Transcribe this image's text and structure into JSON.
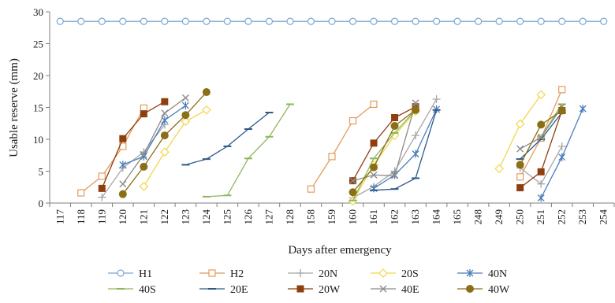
{
  "chart_data": {
    "type": "line",
    "xlabel": "Days after emergency",
    "ylabel": "Usable reserve (mm)",
    "categories": [
      "117",
      "118",
      "119",
      "120",
      "121",
      "122",
      "123",
      "124",
      "125",
      "126",
      "127",
      "128",
      "158",
      "159",
      "160",
      "161",
      "162",
      "163",
      "164",
      "165",
      "248",
      "249",
      "250",
      "251",
      "252",
      "253",
      "254"
    ],
    "ylim": [
      0,
      30
    ],
    "yticks": [
      0,
      5,
      10,
      15,
      20,
      25,
      30
    ],
    "grid": false,
    "legend_position": "bottom",
    "series": [
      {
        "name": "H1",
        "color": "#7BA7CE",
        "marker": "circle-open",
        "points": [
          [
            "117",
            28.5
          ],
          [
            "118",
            28.5
          ],
          [
            "119",
            28.5
          ],
          [
            "120",
            28.5
          ],
          [
            "121",
            28.5
          ],
          [
            "122",
            28.5
          ],
          [
            "123",
            28.5
          ],
          [
            "124",
            28.5
          ],
          [
            "125",
            28.5
          ],
          [
            "126",
            28.5
          ],
          [
            "127",
            28.5
          ],
          [
            "128",
            28.5
          ],
          [
            "158",
            28.5
          ],
          [
            "159",
            28.5
          ],
          [
            "160",
            28.5
          ],
          [
            "161",
            28.5
          ],
          [
            "162",
            28.5
          ],
          [
            "163",
            28.5
          ],
          [
            "164",
            28.5
          ],
          [
            "165",
            28.5
          ],
          [
            "248",
            28.5
          ],
          [
            "249",
            28.5
          ],
          [
            "250",
            28.5
          ],
          [
            "251",
            28.5
          ],
          [
            "252",
            28.5
          ],
          [
            "253",
            28.5
          ],
          [
            "254",
            28.5
          ]
        ]
      },
      {
        "name": "H2",
        "color": "#E59B5A",
        "marker": "square-open",
        "segments": [
          [
            [
              "118",
              1.6
            ],
            [
              "119",
              4.2
            ],
            [
              "120",
              8.9
            ],
            [
              "121",
              14.9
            ]
          ],
          [
            [
              "158",
              2.2
            ],
            [
              "159",
              7.3
            ],
            [
              "160",
              12.9
            ],
            [
              "161",
              15.5
            ]
          ],
          [
            [
              "250",
              4.1
            ],
            [
              "251",
              10.2
            ],
            [
              "252",
              17.8
            ]
          ]
        ]
      },
      {
        "name": "20N",
        "color": "#A6A6A6",
        "marker": "plus",
        "segments": [
          [
            [
              "119",
              0.9
            ],
            [
              "120",
              5.5
            ],
            [
              "121",
              8.0
            ],
            [
              "122",
              12.3
            ]
          ],
          [
            [
              "160",
              0.8
            ],
            [
              "161",
              2.6
            ],
            [
              "162",
              5.0
            ],
            [
              "163",
              10.6
            ],
            [
              "164",
              16.3
            ]
          ],
          [
            [
              "250",
              5.5
            ],
            [
              "251",
              3.0
            ],
            [
              "252",
              8.9
            ]
          ]
        ]
      },
      {
        "name": "20S",
        "color": "#F2D64B",
        "marker": "diamond-open",
        "segments": [
          [
            [
              "121",
              2.6
            ],
            [
              "122",
              8.0
            ],
            [
              "123",
              12.8
            ],
            [
              "124",
              14.6
            ]
          ],
          [
            [
              "160",
              0.3
            ],
            [
              "161",
              6.0
            ],
            [
              "162",
              10.6
            ],
            [
              "163",
              14.4
            ]
          ],
          [
            [
              "249",
              5.4
            ],
            [
              "250",
              12.4
            ],
            [
              "251",
              17.0
            ]
          ]
        ]
      },
      {
        "name": "40N",
        "color": "#4A7EBB",
        "marker": "asterisk",
        "segments": [
          [
            [
              "120",
              6.0
            ],
            [
              "121",
              7.3
            ],
            [
              "122",
              13.0
            ],
            [
              "123",
              15.3
            ]
          ],
          [
            [
              "161",
              2.3
            ],
            [
              "162",
              4.4
            ],
            [
              "163",
              7.7
            ],
            [
              "164",
              14.7
            ]
          ],
          [
            [
              "251",
              0.8
            ],
            [
              "252",
              7.2
            ],
            [
              "253",
              14.8
            ]
          ]
        ]
      },
      {
        "name": "40S",
        "color": "#8DB85A",
        "marker": "dash",
        "segments": [
          [
            [
              "124",
              1.0
            ],
            [
              "125",
              1.2
            ],
            [
              "126",
              7.0
            ],
            [
              "127",
              10.4
            ],
            [
              "128",
              15.5
            ]
          ],
          [
            [
              "160",
              0.4
            ],
            [
              "161",
              7.0
            ],
            [
              "162",
              11.0
            ],
            [
              "163",
              14.6
            ]
          ],
          [
            [
              "251",
              10.4
            ],
            [
              "252",
              15.5
            ]
          ]
        ]
      },
      {
        "name": "20E",
        "color": "#2E5A87",
        "marker": "dash",
        "segments": [
          [
            [
              "123",
              6.0
            ],
            [
              "124",
              6.9
            ],
            [
              "125",
              8.9
            ],
            [
              "126",
              11.6
            ],
            [
              "127",
              14.2
            ]
          ],
          [
            [
              "161",
              2.0
            ],
            [
              "162",
              2.2
            ],
            [
              "163",
              3.9
            ],
            [
              "164",
              14.6
            ]
          ],
          [
            [
              "250",
              6.9
            ],
            [
              "251",
              10.0
            ],
            [
              "252",
              14.2
            ]
          ]
        ]
      },
      {
        "name": "20W",
        "color": "#8E3F0F",
        "marker": "square-filled",
        "segments": [
          [
            [
              "119",
              2.3
            ],
            [
              "120",
              10.1
            ],
            [
              "121",
              14.0
            ],
            [
              "122",
              15.9
            ]
          ],
          [
            [
              "160",
              3.5
            ],
            [
              "161",
              9.4
            ],
            [
              "162",
              13.4
            ],
            [
              "163",
              15.1
            ]
          ],
          [
            [
              "250",
              2.4
            ],
            [
              "251",
              4.9
            ],
            [
              "252",
              14.5
            ]
          ]
        ]
      },
      {
        "name": "40E",
        "color": "#8C8C8C",
        "marker": "cross",
        "segments": [
          [
            [
              "120",
              3.0
            ],
            [
              "121",
              7.6
            ],
            [
              "122",
              14.1
            ],
            [
              "123",
              16.5
            ]
          ],
          [
            [
              "160",
              3.5
            ],
            [
              "161",
              4.4
            ],
            [
              "162",
              4.3
            ],
            [
              "163",
              15.7
            ]
          ],
          [
            [
              "250",
              8.5
            ],
            [
              "251",
              10.3
            ],
            [
              "252",
              15.1
            ]
          ]
        ]
      },
      {
        "name": "40W",
        "color": "#8B6F16",
        "marker": "circle-filled",
        "segments": [
          [
            [
              "120",
              1.4
            ],
            [
              "121",
              5.7
            ],
            [
              "122",
              10.6
            ],
            [
              "123",
              13.8
            ],
            [
              "124",
              17.4
            ]
          ],
          [
            [
              "160",
              1.7
            ],
            [
              "161",
              5.6
            ],
            [
              "162",
              12.1
            ],
            [
              "163",
              14.6
            ]
          ],
          [
            [
              "250",
              6.0
            ],
            [
              "251",
              12.3
            ],
            [
              "252",
              14.5
            ]
          ]
        ]
      }
    ]
  }
}
